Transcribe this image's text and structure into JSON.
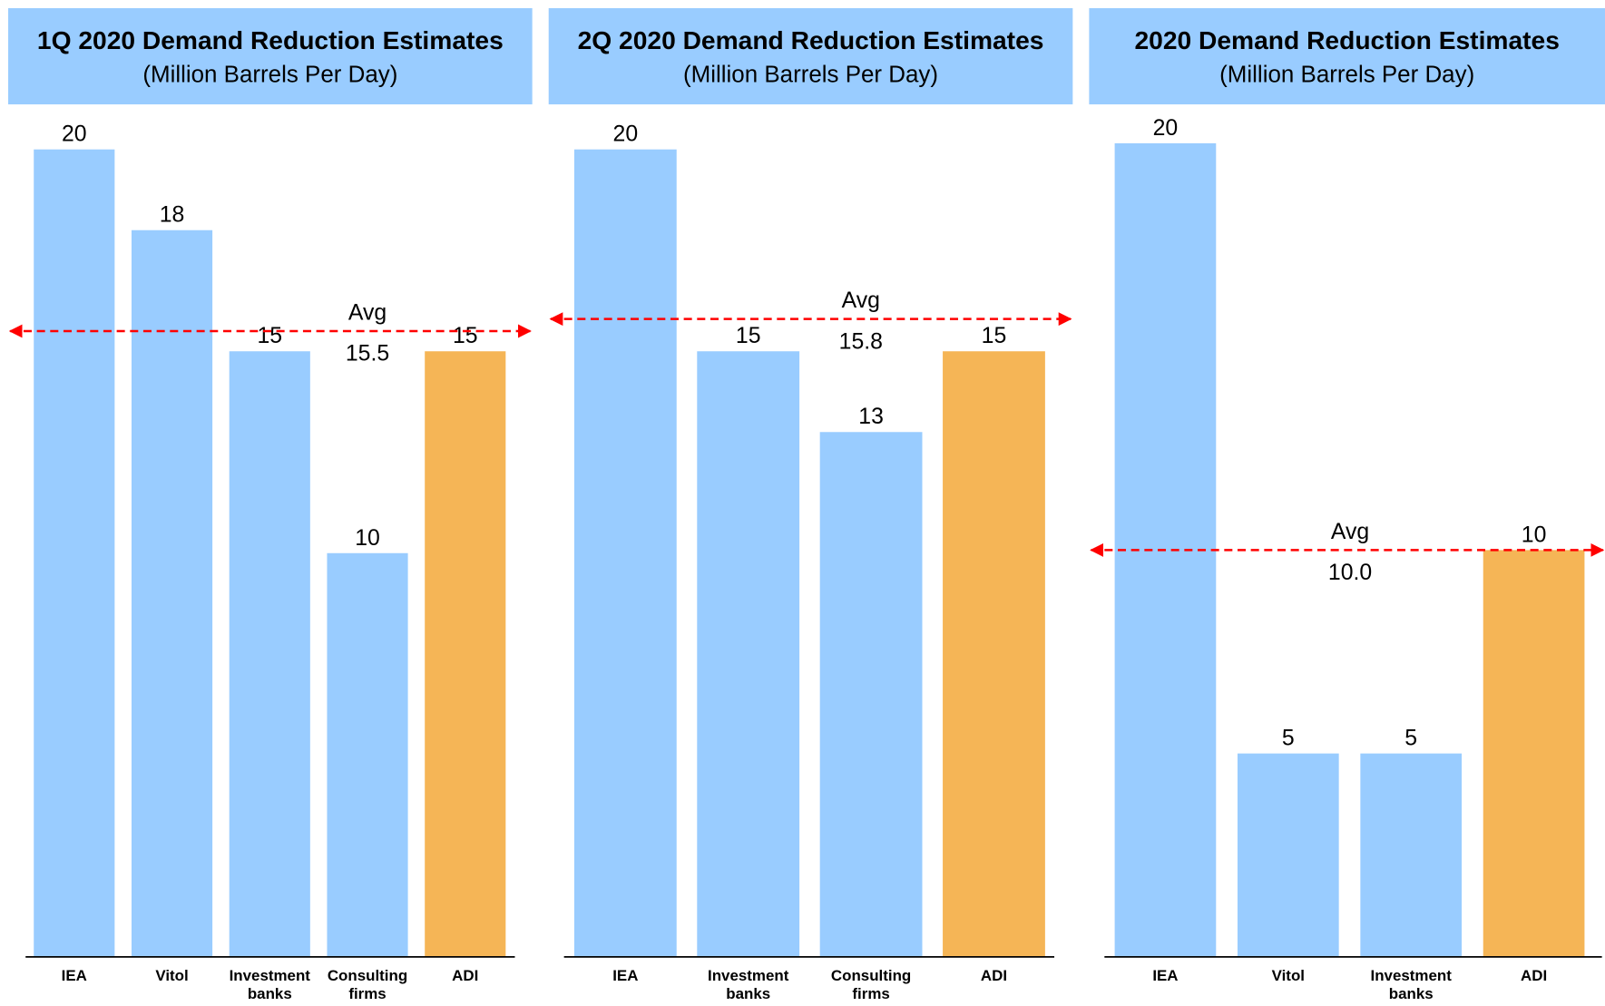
{
  "chart_data": [
    {
      "type": "bar",
      "title": "1Q 2020 Demand Reduction Estimates",
      "subtitle": "(Million Barrels Per Day)",
      "categories": [
        "IEA",
        "Vitol",
        "Investment banks",
        "Consulting firms",
        "ADI"
      ],
      "values": [
        20,
        18,
        15,
        10,
        15
      ],
      "colors": [
        "#99ccff",
        "#99ccff",
        "#99ccff",
        "#99ccff",
        "#f5b556"
      ],
      "average_text": "Avg",
      "average": 15.5,
      "average_color": "#ff0000"
    },
    {
      "type": "bar",
      "title": "2Q 2020 Demand Reduction Estimates",
      "subtitle": "(Million Barrels Per Day)",
      "categories": [
        "IEA",
        "Investment banks",
        "Consulting firms",
        "ADI"
      ],
      "values": [
        20,
        15,
        13,
        15
      ],
      "colors": [
        "#99ccff",
        "#99ccff",
        "#99ccff",
        "#f5b556"
      ],
      "average_text": "Avg",
      "average": 15.8,
      "average_color": "#ff0000"
    },
    {
      "type": "bar",
      "title": "2020 Demand Reduction Estimates",
      "subtitle": "(Million Barrels Per Day)",
      "categories": [
        "IEA",
        "Vitol",
        "Investment banks",
        "ADI"
      ],
      "values": [
        20,
        5,
        5,
        10
      ],
      "colors": [
        "#99ccff",
        "#99ccff",
        "#99ccff",
        "#f5b556"
      ],
      "average_text": "Avg",
      "average": {
        "value": 10,
        "label": "10.0"
      },
      "average_color": "#ff0000"
    }
  ]
}
